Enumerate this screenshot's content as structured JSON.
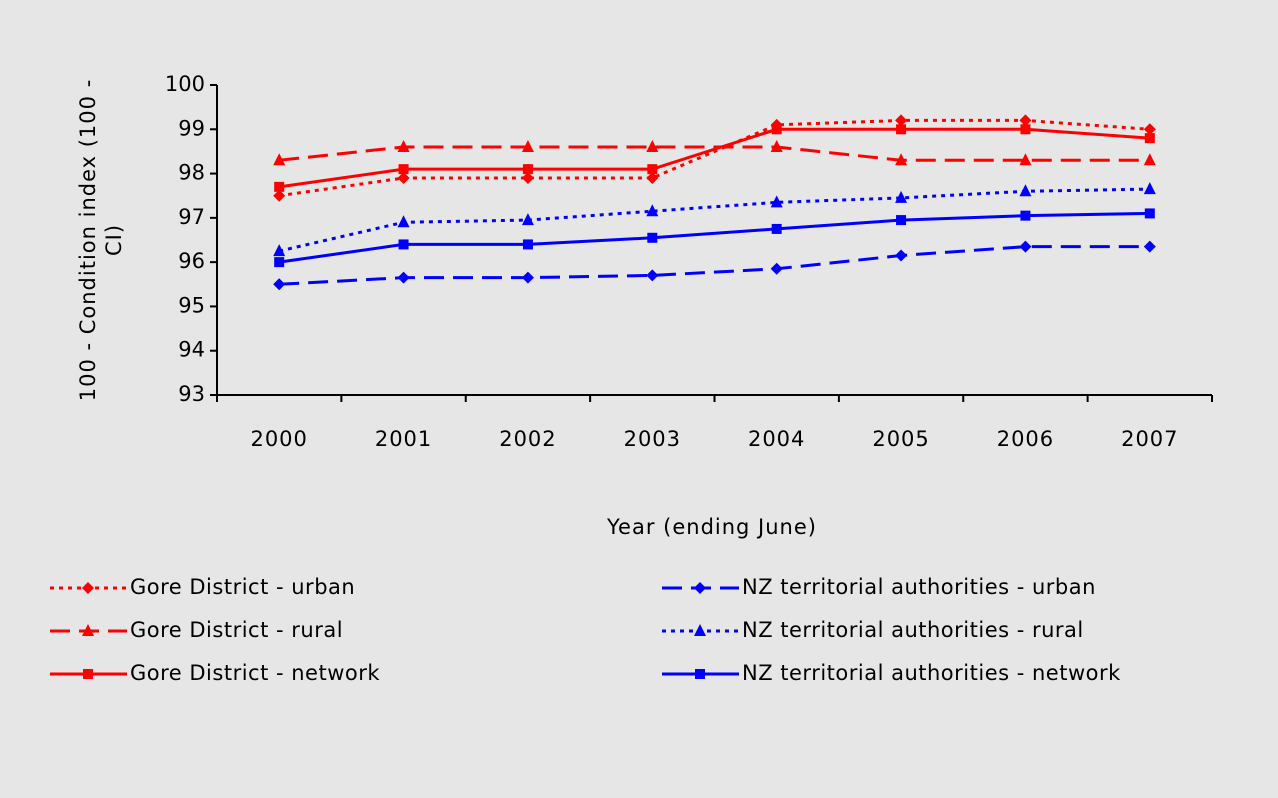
{
  "chart_data": {
    "type": "line",
    "y_label": "100 - Condition index (100 - CI)",
    "x_label": "Year (ending June)",
    "categories": [
      "2000",
      "2001",
      "2002",
      "2003",
      "2004",
      "2005",
      "2006",
      "2007"
    ],
    "ylim": [
      93,
      100
    ],
    "yticks": [
      93,
      94,
      95,
      96,
      97,
      98,
      99,
      100
    ],
    "series": [
      {
        "name": "Gore District - urban",
        "color": "#ff0000",
        "dash": "dotted",
        "marker": "diamond",
        "values": [
          97.5,
          97.9,
          97.9,
          97.9,
          99.1,
          99.2,
          99.2,
          99.0
        ]
      },
      {
        "name": "Gore District - rural",
        "color": "#ff0000",
        "dash": "dashed",
        "marker": "triangle",
        "values": [
          98.3,
          98.6,
          98.6,
          98.6,
          98.6,
          98.3,
          98.3,
          98.3
        ]
      },
      {
        "name": "Gore District - network",
        "color": "#ff0000",
        "dash": "solid",
        "marker": "square",
        "values": [
          97.7,
          98.1,
          98.1,
          98.1,
          99.0,
          99.0,
          99.0,
          98.8
        ]
      },
      {
        "name": "NZ territorial authorities - urban",
        "color": "#0000ff",
        "dash": "dashed",
        "marker": "diamond",
        "values": [
          95.5,
          95.65,
          95.65,
          95.7,
          95.85,
          96.15,
          96.35,
          96.35
        ]
      },
      {
        "name": "NZ territorial authorities - rural",
        "color": "#0000ff",
        "dash": "dotted",
        "marker": "triangle",
        "values": [
          96.25,
          96.9,
          96.95,
          97.15,
          97.35,
          97.45,
          97.6,
          97.65
        ]
      },
      {
        "name": "NZ territorial authorities - network",
        "color": "#0000ff",
        "dash": "solid",
        "marker": "square",
        "values": [
          96.0,
          96.4,
          96.4,
          96.55,
          96.75,
          96.95,
          97.05,
          97.1
        ]
      }
    ]
  }
}
